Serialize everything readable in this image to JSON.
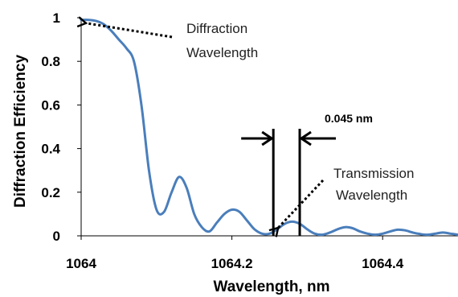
{
  "chart_data": {
    "type": "line",
    "title": "",
    "xlabel": "Wavelength, nm",
    "ylabel": "Diffraction Efficiency",
    "xlim": [
      1064,
      1064.5
    ],
    "ylim": [
      0,
      1
    ],
    "x_ticks": [
      1064,
      1064.2,
      1064.4
    ],
    "x_tick_labels": [
      "1064",
      "1064.2",
      "1064.4"
    ],
    "y_ticks": [
      0,
      0.2,
      0.4,
      0.6,
      0.8,
      1
    ],
    "y_tick_labels": [
      "0",
      "0.2",
      "0.4",
      "0.6",
      "0.8",
      "1"
    ],
    "grid": false,
    "series": [
      {
        "color": "#4a7ebb",
        "x": [
          1064.0,
          1064.01,
          1064.02,
          1064.03,
          1064.04,
          1064.05,
          1064.06,
          1064.07,
          1064.08,
          1064.09,
          1064.1,
          1064.11,
          1064.12,
          1064.13,
          1064.14,
          1064.15,
          1064.16,
          1064.17,
          1064.18,
          1064.19,
          1064.2,
          1064.21,
          1064.22,
          1064.23,
          1064.24,
          1064.25,
          1064.26,
          1064.27,
          1064.28,
          1064.29,
          1064.3,
          1064.31,
          1064.32,
          1064.33,
          1064.34,
          1064.35,
          1064.36,
          1064.37,
          1064.38,
          1064.39,
          1064.4,
          1064.41,
          1064.42,
          1064.43,
          1064.44,
          1064.45,
          1064.46,
          1064.47,
          1064.48,
          1064.49,
          1064.5
        ],
        "y": [
          0.99,
          0.99,
          0.985,
          0.97,
          0.94,
          0.9,
          0.86,
          0.8,
          0.6,
          0.3,
          0.12,
          0.11,
          0.2,
          0.27,
          0.22,
          0.1,
          0.04,
          0.02,
          0.06,
          0.1,
          0.12,
          0.11,
          0.07,
          0.03,
          0.01,
          0.01,
          0.03,
          0.055,
          0.065,
          0.055,
          0.03,
          0.01,
          0.005,
          0.015,
          0.03,
          0.04,
          0.035,
          0.02,
          0.01,
          0.005,
          0.01,
          0.02,
          0.028,
          0.025,
          0.015,
          0.008,
          0.005,
          0.01,
          0.015,
          0.01,
          0.005
        ]
      }
    ],
    "annotations": {
      "diffraction": {
        "text1": "Diffraction",
        "text2": "Wavelength",
        "arrow_to": [
          1064.0,
          0.99
        ],
        "from_side": "right"
      },
      "transmission": {
        "text1": "Transmission",
        "text2": "Wavelength",
        "arrow_to": [
          1064.255,
          0.0
        ],
        "from_side": "upper-right"
      },
      "bandwidth": {
        "text": "0.045 nm",
        "x1": 1064.255,
        "x2": 1064.29
      }
    }
  }
}
